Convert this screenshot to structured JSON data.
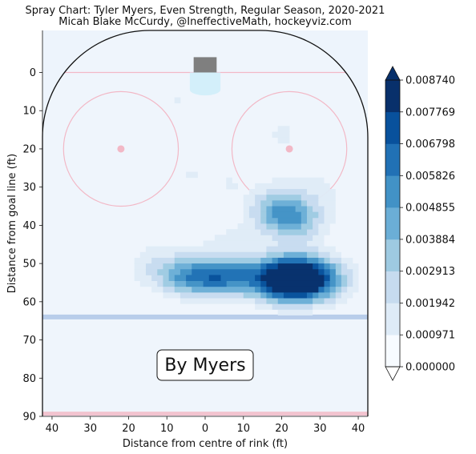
{
  "chart_data": {
    "type": "heatmap",
    "title_lines": [
      "Spray Chart: Tyler Myers, Even Strength, Regular Season, 2020-2021",
      "Micah Blake McCurdy, @IneffectiveMath, hockeyviz.com"
    ],
    "xlabel": "Distance from centre of rink (ft)",
    "ylabel": "Distance from goal line (ft)",
    "xlim": [
      -42.5,
      42.5
    ],
    "ylim": [
      90,
      -11
    ],
    "x_ticks": [
      -40,
      -30,
      -20,
      -10,
      0,
      10,
      20,
      30,
      40
    ],
    "x_tick_labels": [
      "40",
      "30",
      "20",
      "10",
      "0",
      "10",
      "20",
      "30",
      "40"
    ],
    "y_ticks": [
      0,
      10,
      20,
      30,
      40,
      50,
      60,
      70,
      80,
      90
    ],
    "y_tick_labels": [
      "0",
      "10",
      "20",
      "30",
      "40",
      "50",
      "60",
      "70",
      "80",
      "90"
    ],
    "annotation": "By Myers",
    "colorbar": {
      "levels": [
        0.0,
        0.000971,
        0.001942,
        0.002913,
        0.003884,
        0.004855,
        0.005826,
        0.006798,
        0.007769,
        0.00874
      ],
      "tick_labels": [
        "0.000000",
        "0.000971",
        "0.001942",
        "0.002913",
        "0.003884",
        "0.004855",
        "0.005826",
        "0.006798",
        "0.007769",
        "0.008740"
      ],
      "colors": [
        "#f7fbff",
        "#deebf7",
        "#c6dbef",
        "#9ecae1",
        "#6baed6",
        "#4292c6",
        "#2171b5",
        "#08519c",
        "#08306b"
      ]
    },
    "density_peaks": [
      {
        "x": 26,
        "y": 54,
        "sigma_x": 7,
        "sigma_y": 4,
        "peak": 0.0087
      },
      {
        "x": 20,
        "y": 54,
        "sigma_x": 6,
        "sigma_y": 4,
        "peak": 0.0055
      },
      {
        "x": 6,
        "y": 53.5,
        "sigma_x": 6,
        "sigma_y": 3.5,
        "peak": 0.0049
      },
      {
        "x": -4,
        "y": 53.5,
        "sigma_x": 6,
        "sigma_y": 3.5,
        "peak": 0.0045
      },
      {
        "x": -13,
        "y": 50,
        "sigma_x": 6,
        "sigma_y": 4,
        "peak": 0.0014
      },
      {
        "x": 18,
        "y": 36,
        "sigma_x": 5,
        "sigma_y": 4,
        "peak": 0.0033
      },
      {
        "x": 24,
        "y": 39,
        "sigma_x": 5,
        "sigma_y": 4,
        "peak": 0.0031
      },
      {
        "x": 28,
        "y": 32,
        "sigma_x": 8,
        "sigma_y": 6,
        "peak": 0.0012
      },
      {
        "x": 20,
        "y": 16,
        "sigma_x": 4,
        "sigma_y": 4,
        "peak": 0.0011
      },
      {
        "x": 6,
        "y": 45,
        "sigma_x": 6,
        "sigma_y": 4,
        "peak": 0.0012
      },
      {
        "x": -17,
        "y": 28,
        "sigma_x": 2.5,
        "sigma_y": 3,
        "peak": 0.001
      },
      {
        "x": -7,
        "y": 7,
        "sigma_x": 1.5,
        "sigma_y": 1.5,
        "peak": 0.001
      },
      {
        "x": -4,
        "y": 27,
        "sigma_x": 2.5,
        "sigma_y": 1.5,
        "peak": 0.0011
      },
      {
        "x": 6,
        "y": 29,
        "sigma_x": 4,
        "sigma_y": 2,
        "peak": 0.001
      }
    ]
  },
  "annotation_box": {
    "text": "By Myers"
  }
}
